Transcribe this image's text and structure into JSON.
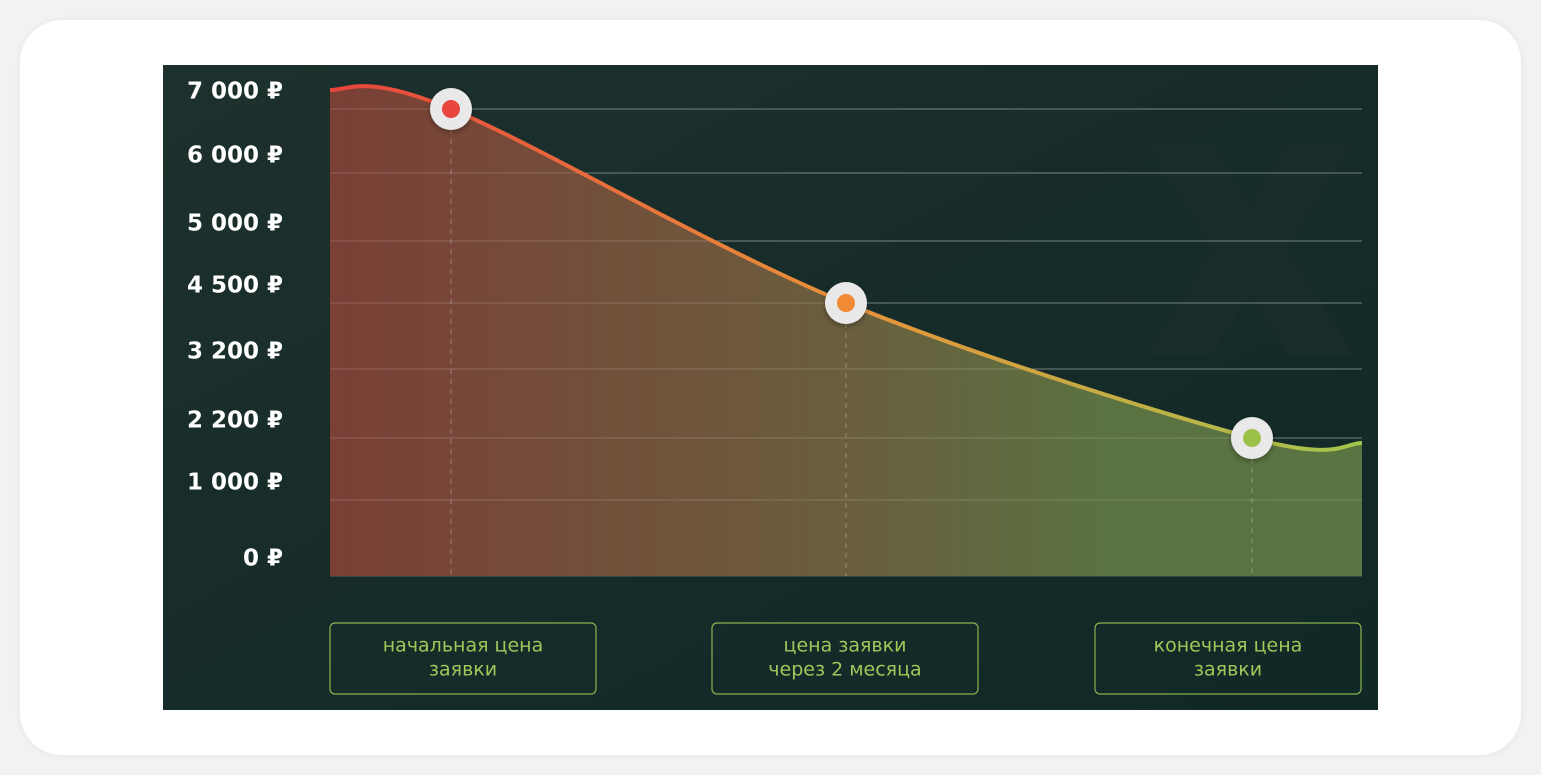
{
  "chart_data": {
    "type": "line",
    "categories": [
      [
        "начальная цена",
        "заявки"
      ],
      [
        "цена заявки",
        "через 2 месяца"
      ],
      [
        "конечная цена",
        "заявки"
      ]
    ],
    "values": [
      7000,
      4500,
      2200
    ],
    "marker_colors": [
      "#e8453c",
      "#f08a34",
      "#9bc14b"
    ],
    "yticks": [
      {
        "value": 7000,
        "label": "7 000 ₽"
      },
      {
        "value": 6000,
        "label": "6 000 ₽"
      },
      {
        "value": 5000,
        "label": "5 000 ₽"
      },
      {
        "value": 4500,
        "label": "4 500 ₽"
      },
      {
        "value": 3200,
        "label": "3 200 ₽"
      },
      {
        "value": 2200,
        "label": "2 200 ₽"
      },
      {
        "value": 1000,
        "label": "1 000 ₽"
      },
      {
        "value": 0,
        "label": "0 ₽"
      }
    ],
    "grid": true
  }
}
